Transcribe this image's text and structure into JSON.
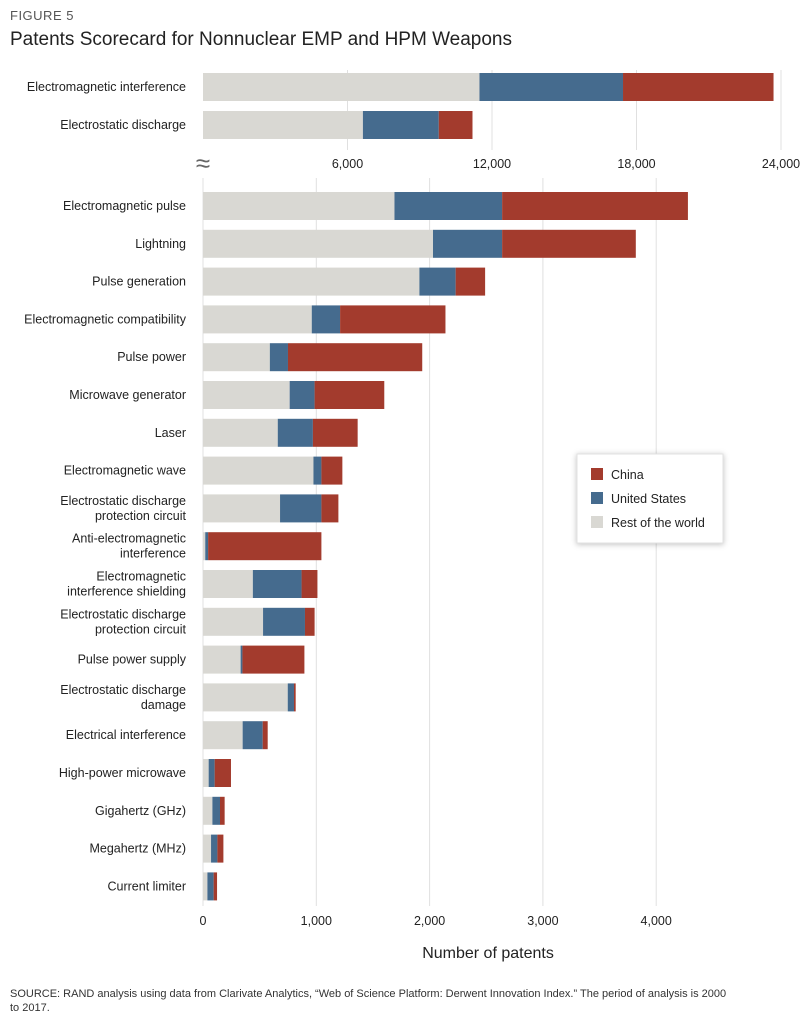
{
  "figure_label": "FIGURE 5",
  "title": "Patents Scorecard for Nonnuclear EMP and HPM Weapons",
  "source": [
    "SOURCE: RAND analysis using data from Clarivate Analytics, “Web of Science Platform: Derwent Innovation Index.” The period of analysis is 2000",
    "to 2017."
  ],
  "break_symbol": "≈",
  "colors": {
    "China": "#a33b2d",
    "United States": "#456b8e",
    "Rest of the world": "#d9d8d3"
  },
  "chart_data": [
    {
      "type": "bar",
      "orientation": "horizontal",
      "stacked": true,
      "panel": "top",
      "xlim": [
        0,
        24000
      ],
      "xticks": [
        6000,
        12000,
        18000,
        24000
      ],
      "xtick_labels": [
        "6,000",
        "12,000",
        "18,000",
        "24,000"
      ],
      "grid": true,
      "categories": [
        [
          "Electromagnetic interference"
        ],
        [
          "Electrostatic discharge"
        ]
      ],
      "series": [
        {
          "name": "Rest of the world",
          "values": [
            11480,
            6640
          ]
        },
        {
          "name": "United States",
          "values": [
            5960,
            3150
          ]
        },
        {
          "name": "China",
          "values": [
            6250,
            1400
          ]
        }
      ]
    },
    {
      "type": "bar",
      "orientation": "horizontal",
      "stacked": true,
      "panel": "bottom",
      "xlim": [
        0,
        5000
      ],
      "xticks": [
        0,
        1000,
        2000,
        3000,
        4000
      ],
      "xtick_labels": [
        "0",
        "1,000",
        "2,000",
        "3,000",
        "4,000"
      ],
      "xlabel": "Number of patents",
      "grid": true,
      "legend": {
        "placement": "right",
        "entries": [
          "China",
          "United States",
          "Rest of the world"
        ]
      },
      "categories": [
        [
          "Electromagnetic pulse"
        ],
        [
          "Lightning"
        ],
        [
          "Pulse generation"
        ],
        [
          "Electromagnetic compatibility"
        ],
        [
          "Pulse power"
        ],
        [
          "Microwave generator"
        ],
        [
          "Laser"
        ],
        [
          "Electromagnetic wave"
        ],
        [
          "Electrostatic discharge",
          "protection circuit"
        ],
        [
          "Anti-electromagnetic",
          "interference"
        ],
        [
          "Electromagnetic",
          "interference shielding"
        ],
        [
          "Electrostatic discharge",
          "protection circuit"
        ],
        [
          "Pulse power supply"
        ],
        [
          "Electrostatic discharge",
          "damage"
        ],
        [
          "Electrical interference"
        ],
        [
          "High-power microwave"
        ],
        [
          "Gigahertz (GHz)"
        ],
        [
          "Megahertz (MHz)"
        ],
        [
          "Current limiter"
        ]
      ],
      "series": [
        {
          "name": "Rest of the world",
          "values": [
            1690,
            2030,
            1910,
            960,
            590,
            765,
            660,
            975,
            680,
            20,
            440,
            530,
            332,
            748,
            350,
            50,
            83,
            71,
            39
          ]
        },
        {
          "name": "United States",
          "values": [
            950,
            610,
            320,
            250,
            160,
            220,
            310,
            70,
            365,
            25,
            430,
            370,
            16,
            55,
            177,
            53,
            67,
            56,
            55
          ]
        },
        {
          "name": "China",
          "values": [
            1640,
            1180,
            260,
            930,
            1185,
            615,
            395,
            185,
            150,
            1000,
            140,
            85,
            547,
            15,
            44,
            144,
            41,
            53,
            30
          ]
        }
      ]
    }
  ]
}
